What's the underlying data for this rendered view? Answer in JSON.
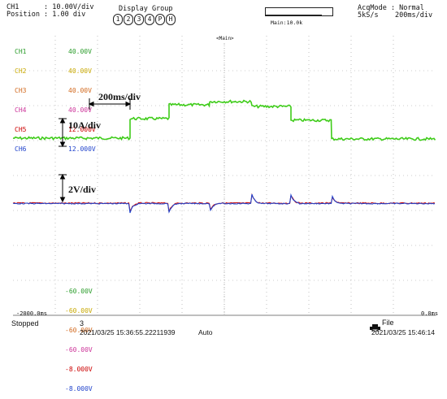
{
  "header": {
    "ch1_line": "CH1      : 10.00V/div",
    "position_line": "Position : 1.00 div",
    "display_group_label": "Display Group",
    "display_group_buttons": [
      "1",
      "2",
      "3",
      "4",
      "P",
      "H"
    ],
    "main_label": "Main:10.0k",
    "acq_mode_line": "AcqMode : Normal",
    "rate_line": "5kS/s    200ms/div"
  },
  "plot": {
    "marker_label": "<Main>",
    "top_scale": [
      {
        "ch": "CH1",
        "value": "40.00V",
        "color": "#2a9c2a"
      },
      {
        "ch": "CH2",
        "value": "40.00V",
        "color": "#c8a800"
      },
      {
        "ch": "CH3",
        "value": "40.00V",
        "color": "#d2691e"
      },
      {
        "ch": "CH4",
        "value": "40.00V",
        "color": "#cc3399"
      },
      {
        "ch": "CH5",
        "value": "12.000V",
        "color": "#cc0000"
      },
      {
        "ch": "CH6",
        "value": "12.000V",
        "color": "#2244cc"
      }
    ],
    "bottom_scale": [
      {
        "value": "-60.00V",
        "color": "#2a9c2a"
      },
      {
        "value": "-60.00V",
        "color": "#c8a800"
      },
      {
        "value": "-60.00V",
        "color": "#d2691e"
      },
      {
        "value": "-60.00V",
        "color": "#cc3399"
      },
      {
        "value": "-8.000V",
        "color": "#cc0000"
      },
      {
        "value": "-8.000V",
        "color": "#2244cc"
      }
    ],
    "x_left": "-2000.0ms",
    "x_right": "0.0ms",
    "annotations": {
      "time_div": "200ms/div",
      "current_div": "10A/div",
      "voltage_div": "2V/div"
    }
  },
  "footer": {
    "status": "Stopped",
    "count": "3",
    "start_time": "2021/03/25 15:36:55.22211939",
    "trigger_mode": "Auto",
    "file_label": "File",
    "end_time": "2021/03/25 15:46:14"
  },
  "colors": {
    "trace_current": "#3fcc1a",
    "trace_red": "#cc1111",
    "trace_blue": "#2244cc",
    "grid": "#9a9a9a"
  }
}
